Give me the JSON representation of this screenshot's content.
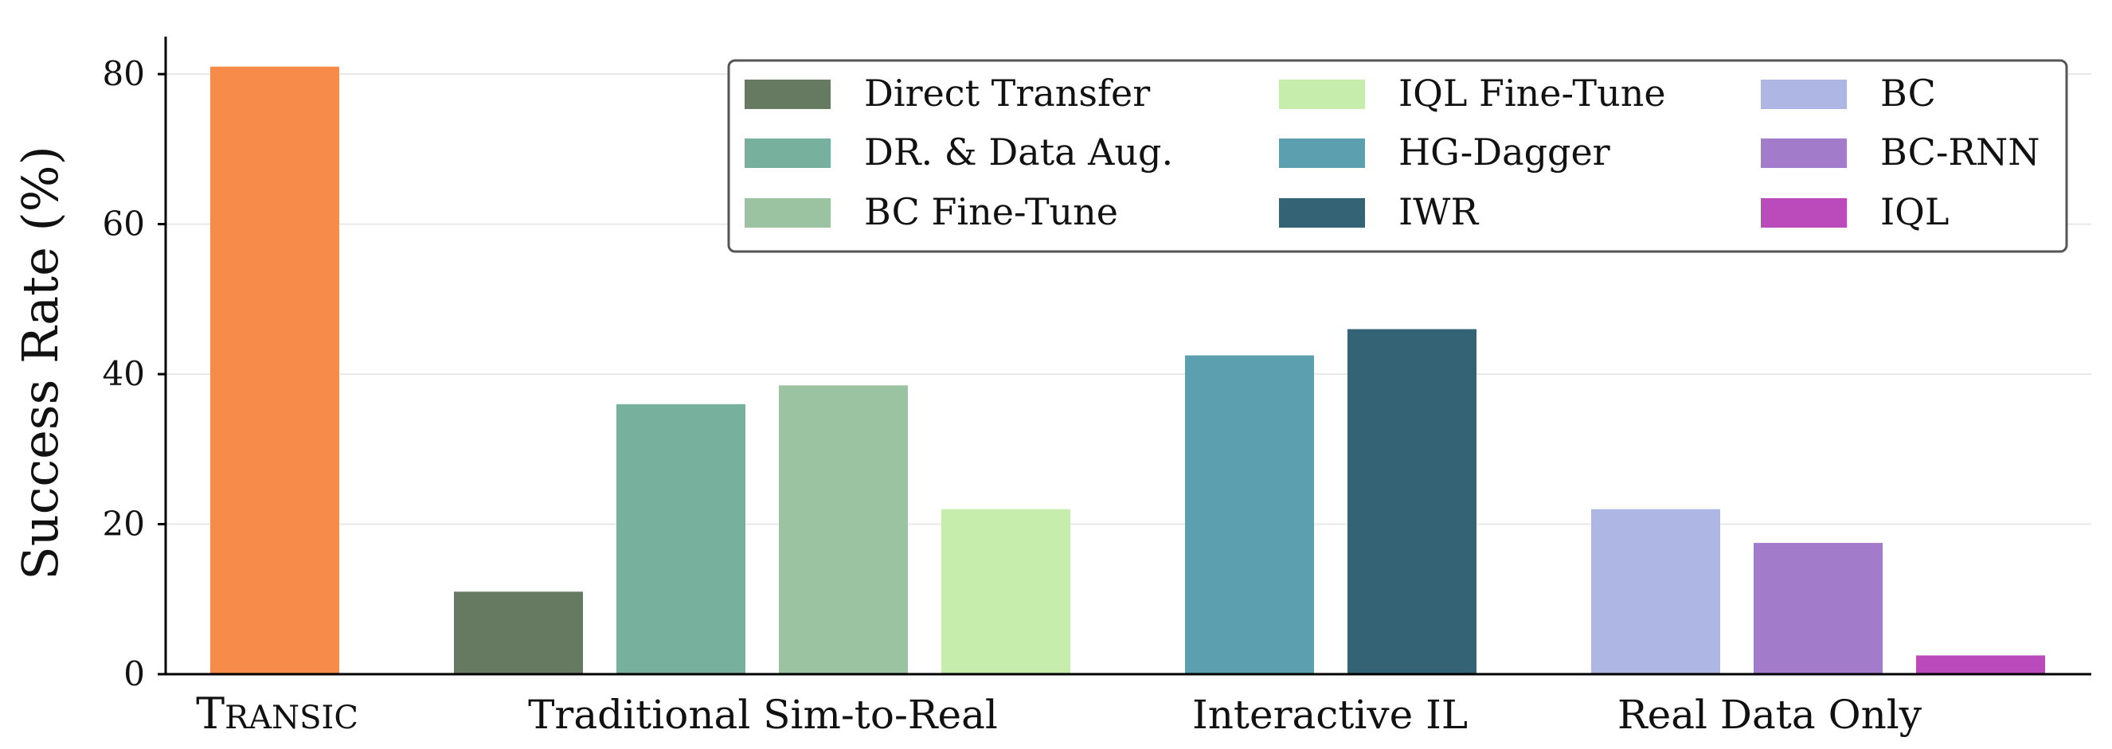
{
  "chart_data": {
    "type": "bar",
    "ylabel": "Success Rate (%)",
    "xlabel": "",
    "ylim": [
      0,
      85
    ],
    "yticks": [
      0,
      20,
      40,
      60,
      80
    ],
    "grid": "horizontal",
    "legend_placement": "top-right",
    "groups": [
      {
        "label": "Transic",
        "bars": [
          {
            "series": "Transic",
            "value": 81.0,
            "color": "#f78c4a"
          }
        ]
      },
      {
        "label": "Traditional Sim-to-Real",
        "bars": [
          {
            "series": "Direct Transfer",
            "value": 11.0,
            "color": "#667a62"
          },
          {
            "series": "DR. & Data Aug.",
            "value": 36.0,
            "color": "#77b19d"
          },
          {
            "series": "BC Fine-Tune",
            "value": 38.5,
            "color": "#9cc3a1"
          },
          {
            "series": "IQL Fine-Tune",
            "value": 22.0,
            "color": "#c6edab"
          }
        ]
      },
      {
        "label": "Interactive IL",
        "bars": [
          {
            "series": "HG-Dagger",
            "value": 42.5,
            "color": "#5c9fae"
          },
          {
            "series": "IWR",
            "value": 46.0,
            "color": "#336374"
          }
        ]
      },
      {
        "label": "Real Data Only",
        "bars": [
          {
            "series": "BC",
            "value": 22.0,
            "color": "#aeb7e3"
          },
          {
            "series": "BC-RNN",
            "value": 17.5,
            "color": "#a37bcb"
          },
          {
            "series": "IQL",
            "value": 2.5,
            "color": "#bb4abb"
          }
        ]
      }
    ],
    "legend": [
      {
        "name": "Direct Transfer",
        "color": "#667a62"
      },
      {
        "name": "DR. & Data Aug.",
        "color": "#77b19d"
      },
      {
        "name": "BC Fine-Tune",
        "color": "#9cc3a1"
      },
      {
        "name": "IQL Fine-Tune",
        "color": "#c6edab"
      },
      {
        "name": "HG-Dagger",
        "color": "#5c9fae"
      },
      {
        "name": "IWR",
        "color": "#336374"
      },
      {
        "name": "BC",
        "color": "#aeb7e3"
      },
      {
        "name": "BC-RNN",
        "color": "#a37bcb"
      },
      {
        "name": "IQL",
        "color": "#bb4abb"
      }
    ]
  }
}
